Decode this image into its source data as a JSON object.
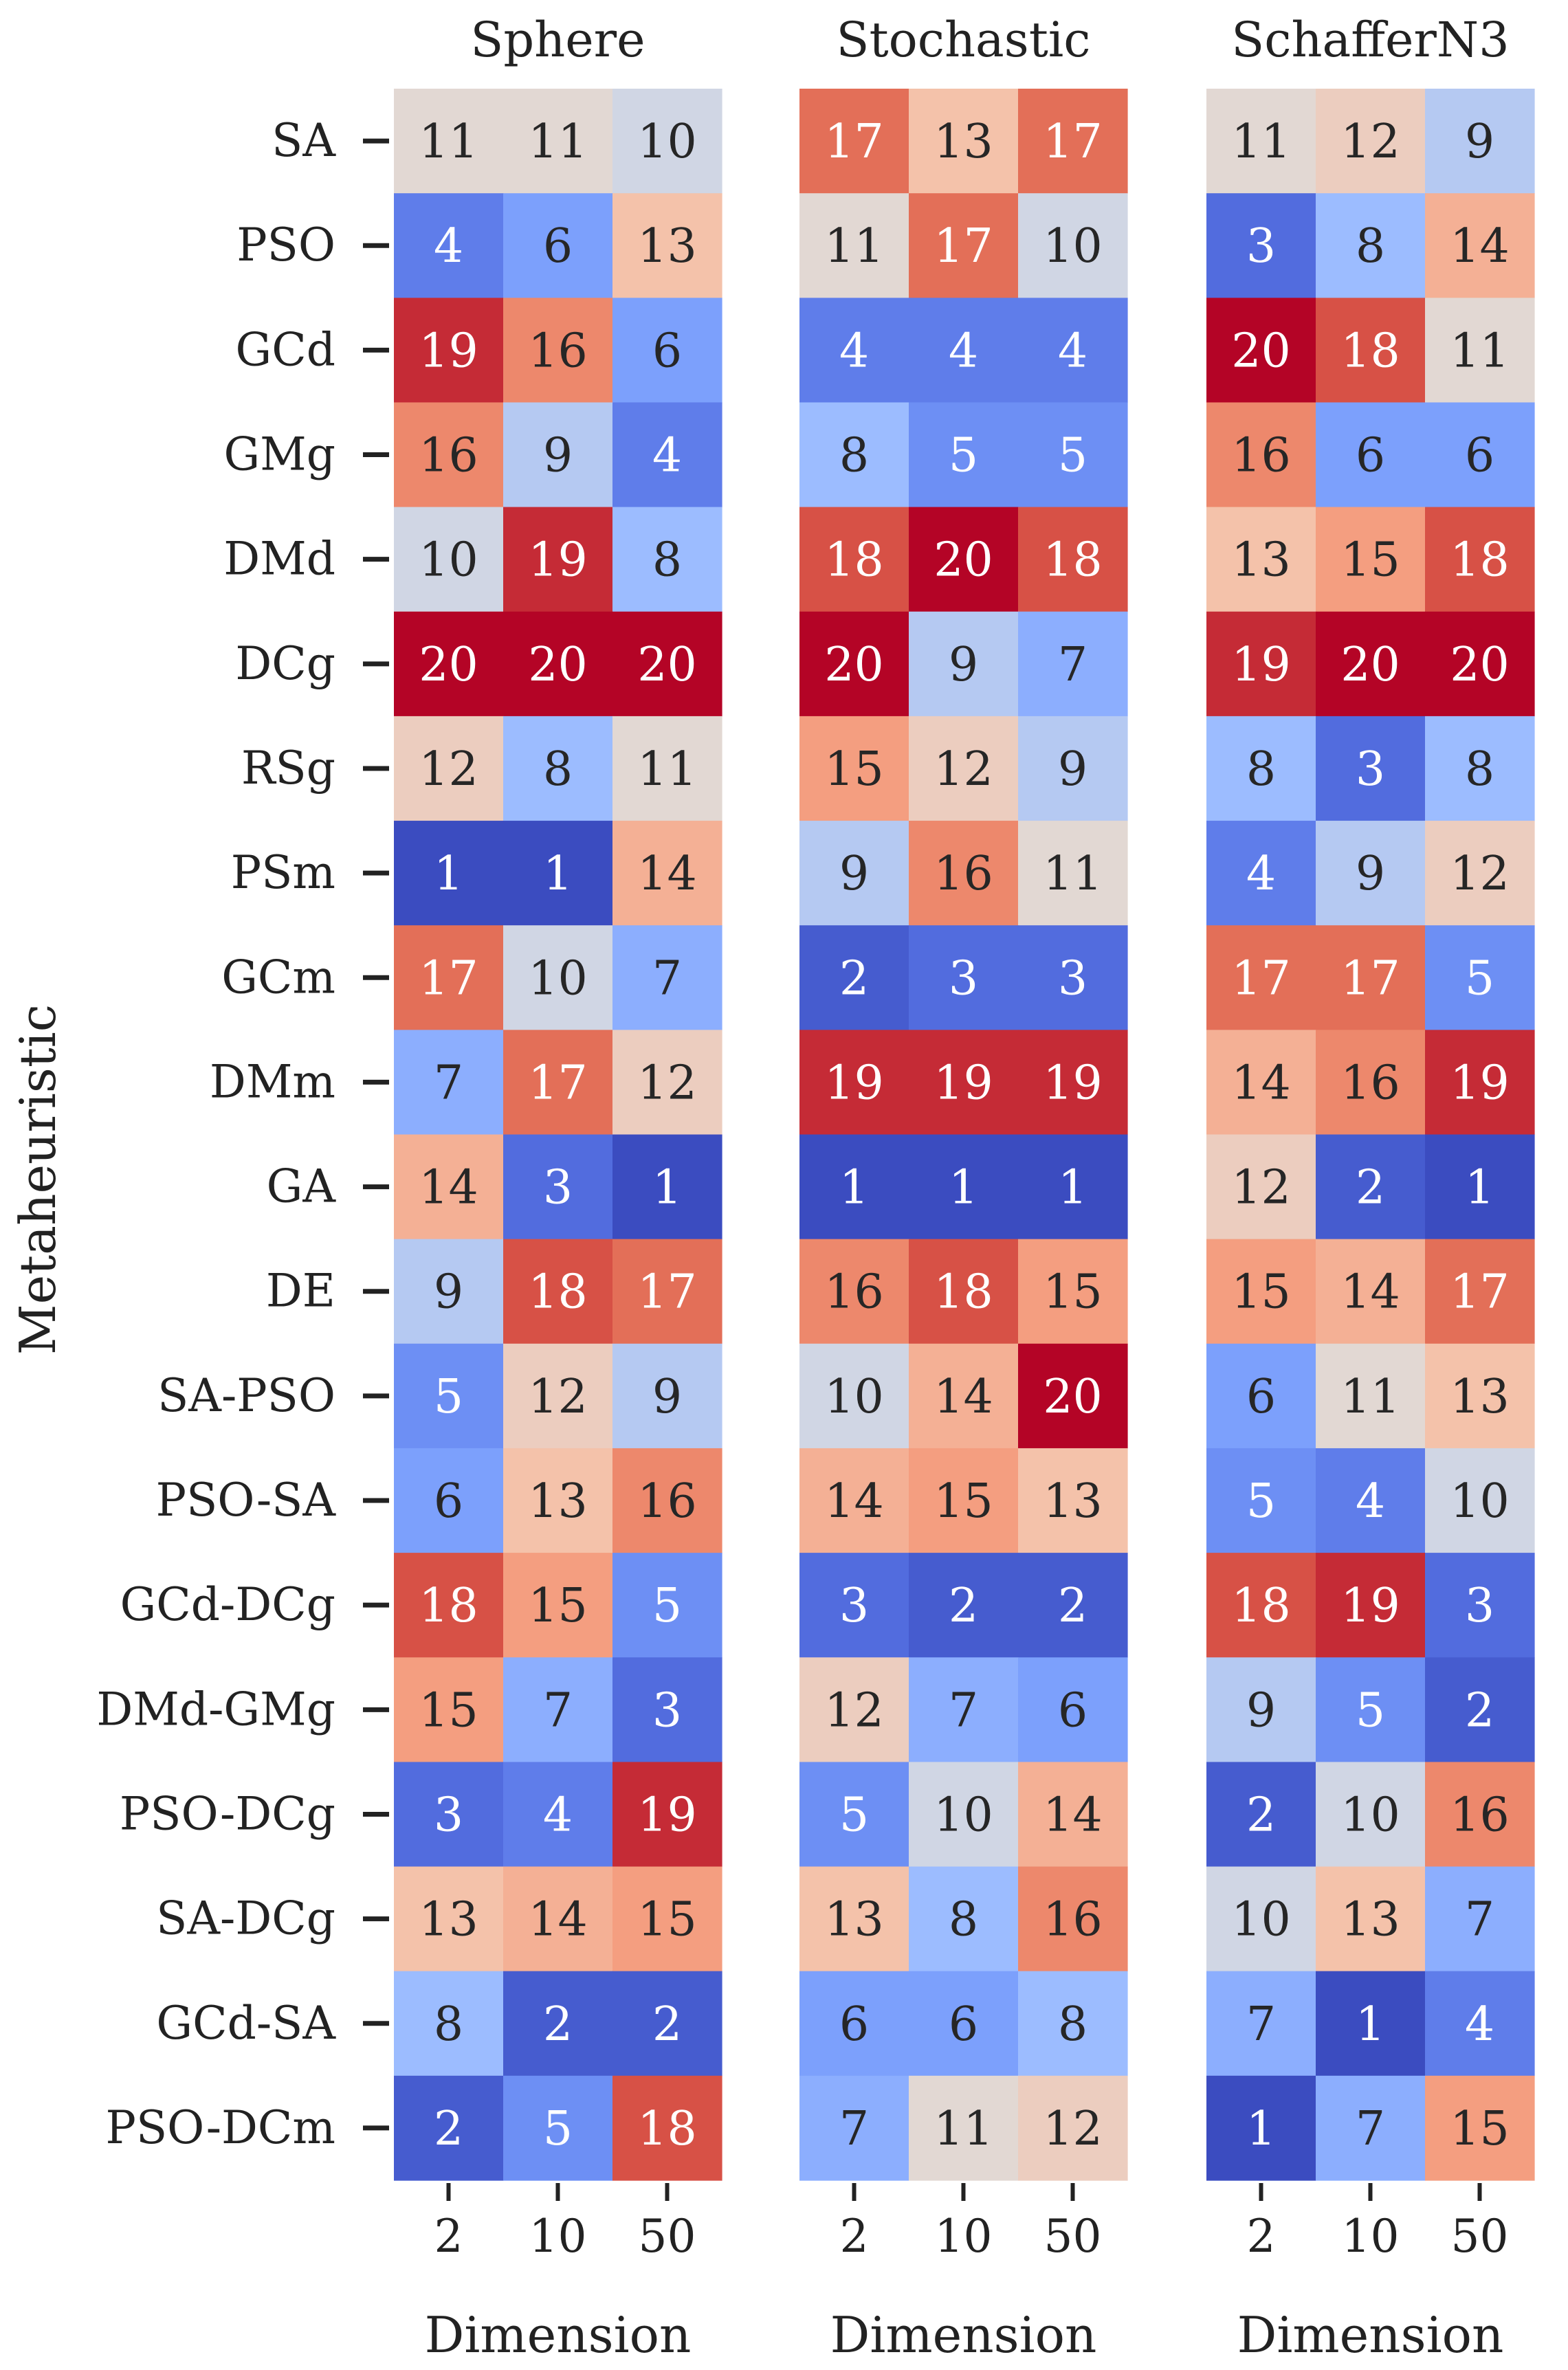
{
  "chart_data": {
    "type": "heatmap",
    "ylabel": "Metaheuristic",
    "colormap": "coolwarm",
    "value_range": [
      1,
      20
    ],
    "rows": [
      "SA",
      "PSO",
      "GCd",
      "GMg",
      "DMd",
      "DCg",
      "RSg",
      "PSm",
      "GCm",
      "DMm",
      "GA",
      "DE",
      "SA-PSO",
      "PSO-SA",
      "GCd-DCg",
      "DMd-GMg",
      "PSO-DCg",
      "SA-DCg",
      "GCd-SA",
      "PSO-DCm"
    ],
    "panels": [
      {
        "title": "Sphere",
        "xlabel": "Dimension",
        "columns": [
          "2",
          "10",
          "50"
        ],
        "values": [
          [
            11,
            11,
            10
          ],
          [
            4,
            6,
            13
          ],
          [
            19,
            16,
            6
          ],
          [
            16,
            9,
            4
          ],
          [
            10,
            19,
            8
          ],
          [
            20,
            20,
            20
          ],
          [
            12,
            8,
            11
          ],
          [
            1,
            1,
            14
          ],
          [
            17,
            10,
            7
          ],
          [
            7,
            17,
            12
          ],
          [
            14,
            3,
            1
          ],
          [
            9,
            18,
            17
          ],
          [
            5,
            12,
            9
          ],
          [
            6,
            13,
            16
          ],
          [
            18,
            15,
            5
          ],
          [
            15,
            7,
            3
          ],
          [
            3,
            4,
            19
          ],
          [
            13,
            14,
            15
          ],
          [
            8,
            2,
            2
          ],
          [
            2,
            5,
            18
          ]
        ]
      },
      {
        "title": "Stochastic",
        "xlabel": "Dimension",
        "columns": [
          "2",
          "10",
          "50"
        ],
        "values": [
          [
            17,
            13,
            17
          ],
          [
            11,
            17,
            10
          ],
          [
            4,
            4,
            4
          ],
          [
            8,
            5,
            5
          ],
          [
            18,
            20,
            18
          ],
          [
            20,
            9,
            7
          ],
          [
            15,
            12,
            9
          ],
          [
            9,
            16,
            11
          ],
          [
            2,
            3,
            3
          ],
          [
            19,
            19,
            19
          ],
          [
            1,
            1,
            1
          ],
          [
            16,
            18,
            15
          ],
          [
            10,
            14,
            20
          ],
          [
            14,
            15,
            13
          ],
          [
            3,
            2,
            2
          ],
          [
            12,
            7,
            6
          ],
          [
            5,
            10,
            14
          ],
          [
            13,
            8,
            16
          ],
          [
            6,
            6,
            8
          ],
          [
            7,
            11,
            12
          ]
        ]
      },
      {
        "title": "SchafferN3",
        "xlabel": "Dimension",
        "columns": [
          "2",
          "10",
          "50"
        ],
        "values": [
          [
            11,
            12,
            9
          ],
          [
            3,
            8,
            14
          ],
          [
            20,
            18,
            11
          ],
          [
            16,
            6,
            6
          ],
          [
            13,
            15,
            18
          ],
          [
            19,
            20,
            20
          ],
          [
            8,
            3,
            8
          ],
          [
            4,
            9,
            12
          ],
          [
            17,
            17,
            5
          ],
          [
            14,
            16,
            19
          ],
          [
            12,
            2,
            1
          ],
          [
            15,
            14,
            17
          ],
          [
            6,
            11,
            13
          ],
          [
            5,
            4,
            10
          ],
          [
            18,
            19,
            3
          ],
          [
            9,
            5,
            2
          ],
          [
            2,
            10,
            16
          ],
          [
            10,
            13,
            7
          ],
          [
            7,
            1,
            4
          ],
          [
            1,
            7,
            15
          ]
        ]
      }
    ]
  }
}
